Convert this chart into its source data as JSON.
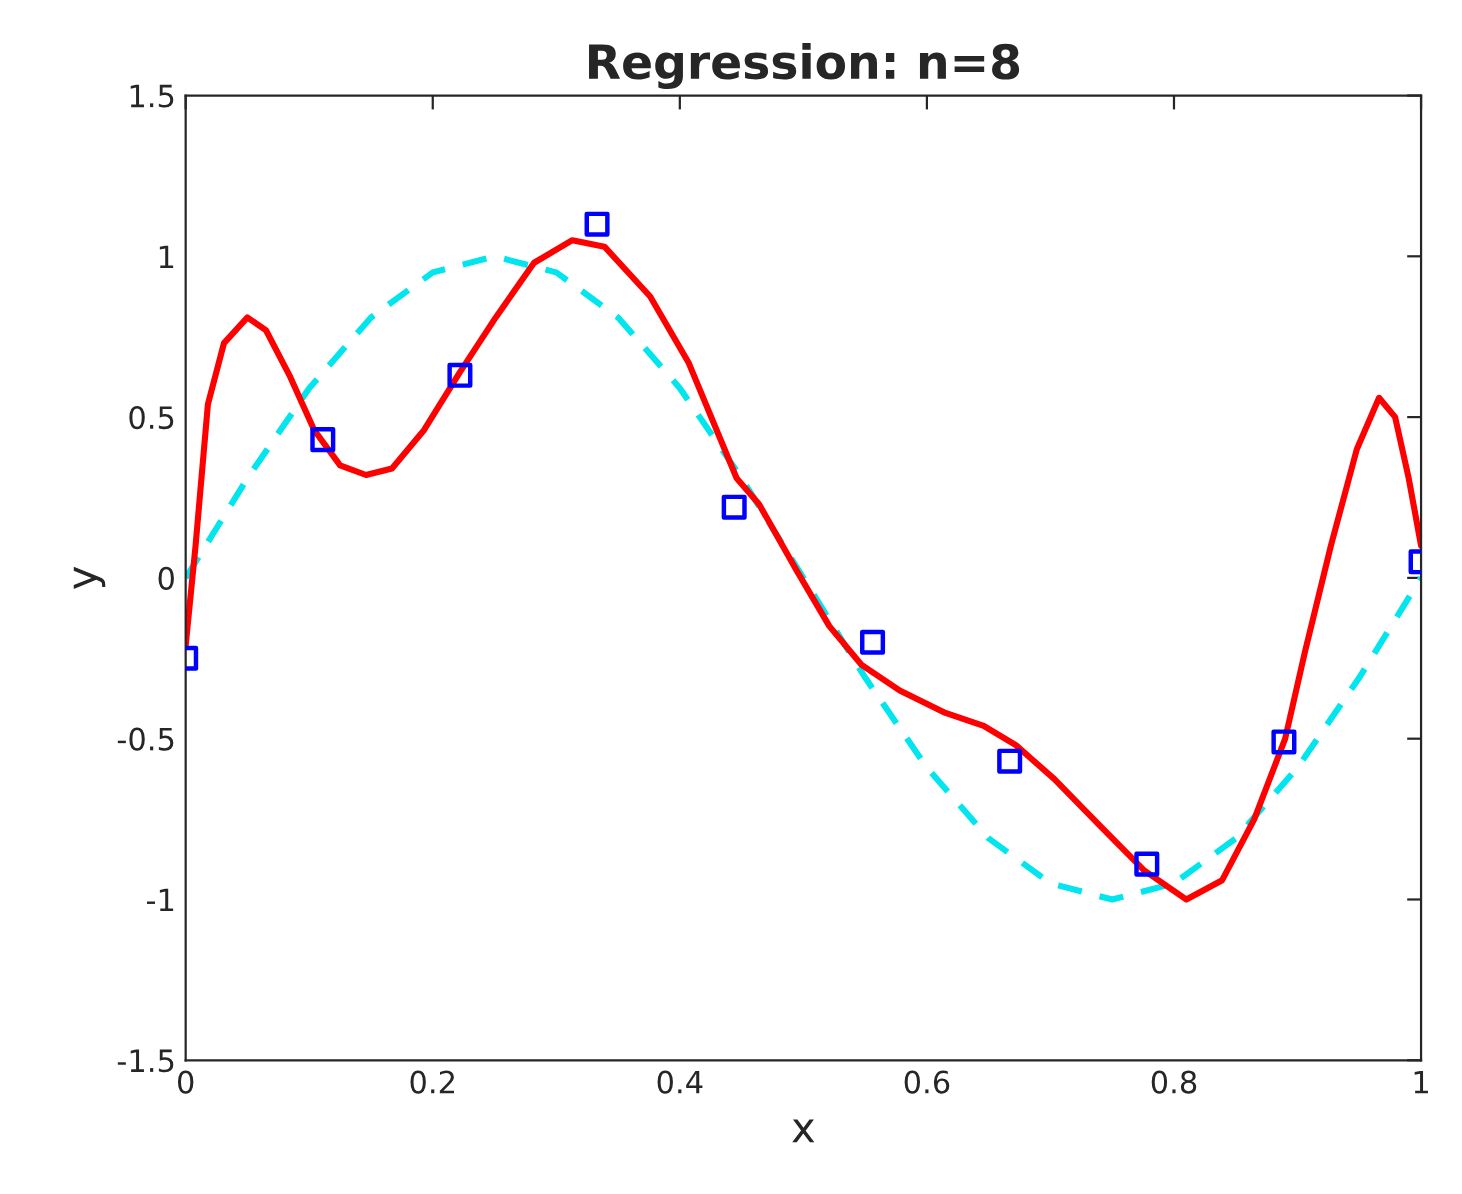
{
  "chart_data": {
    "type": "line",
    "title": "Regression: n=8",
    "xlabel": "x",
    "ylabel": "y",
    "xlim": [
      0,
      1
    ],
    "ylim": [
      -1.5,
      1.5
    ],
    "xticks": [
      0,
      0.2,
      0.4,
      0.6,
      0.8,
      1
    ],
    "yticks": [
      -1.5,
      -1,
      -0.5,
      0,
      0.5,
      1,
      1.5
    ],
    "grid": false,
    "legend": false,
    "series": [
      {
        "color": "#00e5ee",
        "line_style": "dashed",
        "marker": "none",
        "x": [
          0,
          0.05,
          0.1,
          0.15,
          0.2,
          0.25,
          0.3,
          0.35,
          0.4,
          0.45,
          0.5,
          0.55,
          0.6,
          0.65,
          0.7,
          0.75,
          0.8,
          0.85,
          0.9,
          0.95,
          1
        ],
        "values": [
          0,
          0.31,
          0.59,
          0.81,
          0.95,
          1,
          0.95,
          0.81,
          0.59,
          0.31,
          0,
          -0.31,
          -0.59,
          -0.81,
          -0.95,
          -1,
          -0.95,
          -0.81,
          -0.59,
          -0.31,
          0
        ]
      },
      {
        "color": "#ff0000",
        "line_style": "solid",
        "marker": "none",
        "x": [
          0,
          0.008,
          0.018,
          0.031,
          0.05,
          0.065,
          0.084,
          0.104,
          0.125,
          0.146,
          0.167,
          0.193,
          0.222,
          0.251,
          0.282,
          0.313,
          0.339,
          0.376,
          0.407,
          0.446,
          0.464,
          0.495,
          0.521,
          0.547,
          0.578,
          0.615,
          0.646,
          0.672,
          0.703,
          0.74,
          0.776,
          0.81,
          0.839,
          0.865,
          0.89,
          0.906,
          0.927,
          0.948,
          0.966,
          0.979,
          0.99,
          1
        ],
        "values": [
          -0.21,
          0.1,
          0.54,
          0.73,
          0.81,
          0.77,
          0.63,
          0.46,
          0.35,
          0.32,
          0.34,
          0.46,
          0.64,
          0.81,
          0.98,
          1.05,
          1.03,
          0.875,
          0.67,
          0.31,
          0.23,
          0.02,
          -0.15,
          -0.27,
          -0.35,
          -0.42,
          -0.46,
          -0.52,
          -0.625,
          -0.77,
          -0.91,
          -1.0,
          -0.94,
          -0.75,
          -0.5,
          -0.23,
          0.1,
          0.4,
          0.56,
          0.5,
          0.31,
          0.1
        ]
      },
      {
        "type": "scatter",
        "color": "#0000ff",
        "marker": "square",
        "x": [
          0,
          0.111,
          0.222,
          0.333,
          0.444,
          0.556,
          0.667,
          0.778,
          0.889,
          1
        ],
        "values": [
          -0.25,
          0.43,
          0.63,
          1.1,
          0.22,
          -0.2,
          -0.57,
          -0.89,
          -0.51,
          0.05
        ]
      }
    ]
  }
}
